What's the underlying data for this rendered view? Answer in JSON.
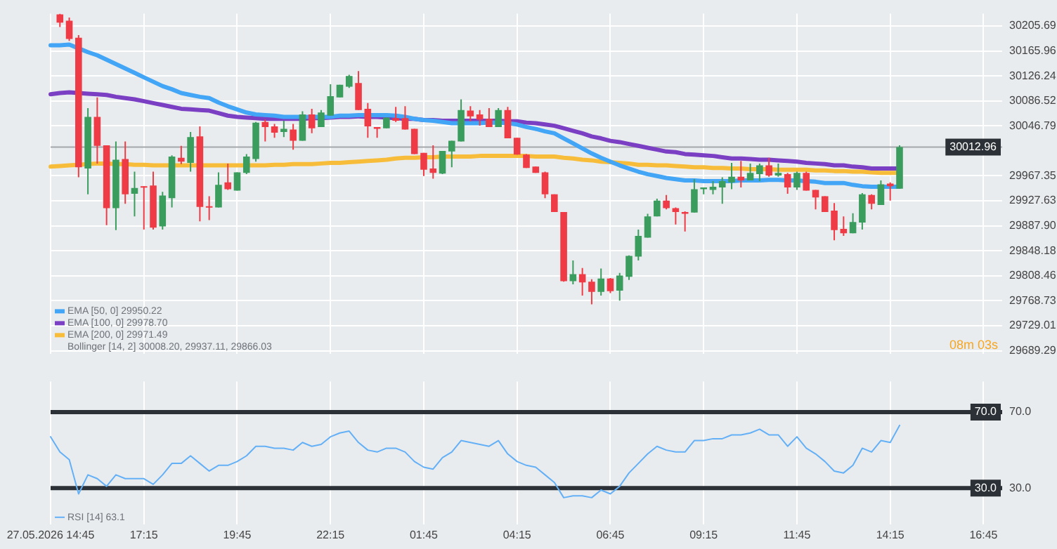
{
  "chart_data": [
    {
      "type": "candlestick",
      "categories": [
        null,
        null,
        null,
        null,
        null,
        null,
        null,
        null,
        null,
        null,
        null,
        null,
        null,
        null,
        null,
        null,
        null,
        null,
        null,
        null,
        null,
        null,
        null,
        null,
        null,
        null,
        null,
        null,
        null,
        null,
        null,
        null,
        null,
        null,
        null,
        null,
        null,
        null,
        null,
        null,
        null,
        null,
        null,
        null,
        null,
        null,
        null,
        null,
        null,
        null,
        null,
        null,
        null,
        null,
        null,
        null,
        null,
        null,
        null,
        null,
        null,
        null,
        null,
        null,
        null,
        null,
        null,
        null,
        null,
        null,
        null,
        null,
        null,
        null,
        null,
        null,
        null,
        null,
        null,
        null,
        null,
        null,
        null,
        null,
        null,
        null,
        null,
        null,
        null,
        null,
        null,
        null,
        null,
        null,
        null,
        null,
        null,
        null,
        null,
        null,
        null,
        null,
        null
      ],
      "ohlc": [
        null,
        [
          30224,
          30225,
          30204,
          30211
        ],
        [
          30214,
          30219,
          30182,
          30185
        ],
        [
          30187,
          30191,
          29965,
          29981
        ],
        [
          29979,
          30075,
          29938,
          30061
        ],
        [
          30061,
          30092,
          29987,
          30015
        ],
        [
          30016,
          30016,
          29889,
          29916
        ],
        [
          29916,
          30022,
          29881,
          29993
        ],
        [
          29994,
          30022,
          29923,
          29938
        ],
        [
          29939,
          29974,
          29903,
          29948
        ],
        [
          29951,
          29951,
          29882,
          29949
        ],
        [
          29952,
          29974,
          29882,
          29885
        ],
        [
          29887,
          29942,
          29882,
          29936
        ],
        [
          29932,
          30000,
          29917,
          29998
        ],
        [
          29996,
          30015,
          29986,
          29990
        ],
        [
          29988,
          30037,
          29974,
          30029
        ],
        [
          30030,
          30046,
          29895,
          29918
        ],
        [
          29919,
          29935,
          29897,
          29917
        ],
        [
          29917,
          29973,
          29917,
          29953
        ],
        [
          29957,
          29987,
          29945,
          29946
        ],
        [
          29944,
          29973,
          29944,
          29973
        ],
        [
          29972,
          30002,
          29970,
          29998
        ],
        [
          29994,
          30053,
          29990,
          30052
        ],
        [
          30053,
          30057,
          30022,
          30045
        ],
        [
          30046,
          30050,
          30028,
          30036
        ],
        [
          30037,
          30055,
          30029,
          30042
        ],
        [
          30041,
          30050,
          30009,
          30023
        ],
        [
          30023,
          30070,
          30023,
          30065
        ],
        [
          30065,
          30074,
          30035,
          30043
        ],
        [
          30045,
          30072,
          30045,
          30068
        ],
        [
          30063,
          30113,
          30063,
          30094
        ],
        [
          30092,
          30112,
          30092,
          30112
        ],
        [
          30109,
          30128,
          30107,
          30126
        ],
        [
          30115,
          30134,
          30072,
          30072
        ],
        [
          30074,
          30083,
          30028,
          30046
        ],
        [
          30045,
          30045,
          30028,
          30042
        ],
        [
          30043,
          30060,
          30043,
          30060
        ],
        [
          30059,
          30077,
          30053,
          30055
        ],
        [
          30059,
          30078,
          30041,
          30041
        ],
        [
          30042,
          30042,
          30002,
          30002
        ],
        [
          30004,
          30004,
          29967,
          29977
        ],
        [
          29979,
          30016,
          29963,
          29972
        ],
        [
          29971,
          30007,
          29970,
          30007
        ],
        [
          30006,
          30023,
          29981,
          30023
        ],
        [
          30022,
          30089,
          30022,
          30072
        ],
        [
          30071,
          30078,
          30054,
          30062
        ],
        [
          30065,
          30072,
          30047,
          30057
        ],
        [
          30058,
          30075,
          30045,
          30045
        ],
        [
          30045,
          30075,
          30045,
          30072
        ],
        [
          30072,
          30077,
          30027,
          30027
        ],
        [
          30028,
          30028,
          30001,
          30001
        ],
        [
          30001,
          30002,
          29980,
          29980
        ],
        [
          29982,
          29982,
          29972,
          29972
        ],
        [
          29973,
          29974,
          29932,
          29938
        ],
        [
          29938,
          29938,
          29910,
          29910
        ],
        [
          29910,
          29910,
          29799,
          29800
        ],
        [
          29800,
          29833,
          29795,
          29811
        ],
        [
          29811,
          29821,
          29777,
          29798
        ],
        [
          29799,
          29803,
          29763,
          29783
        ],
        [
          29783,
          29820,
          29777,
          29804
        ],
        [
          29804,
          29805,
          29781,
          29784
        ],
        [
          29785,
          29813,
          29769,
          29809
        ],
        [
          29807,
          29841,
          29802,
          29840
        ],
        [
          29839,
          29882,
          29833,
          29872
        ],
        [
          29869,
          29907,
          29869,
          29903
        ],
        [
          29903,
          29931,
          29903,
          29928
        ],
        [
          29928,
          29937,
          29914,
          29916
        ],
        [
          29916,
          29917,
          29890,
          29910
        ],
        [
          29910,
          29911,
          29879,
          29907
        ],
        [
          29909,
          29962,
          29909,
          29946
        ],
        [
          29946,
          29949,
          29938,
          29949
        ],
        [
          29945,
          29959,
          29938,
          29950
        ],
        [
          29949,
          29965,
          29923,
          29959
        ],
        [
          29957,
          29988,
          29946,
          29966
        ],
        [
          29966,
          29991,
          29949,
          29960
        ],
        [
          29960,
          29987,
          29960,
          29972
        ],
        [
          29970,
          29987,
          29959,
          29984
        ],
        [
          29984,
          29996,
          29966,
          29968
        ],
        [
          29968,
          29987,
          29966,
          29972
        ],
        [
          29970,
          29972,
          29939,
          29949
        ],
        [
          29949,
          29974,
          29945,
          29972
        ],
        [
          29972,
          29974,
          29944,
          29944
        ],
        [
          29945,
          29945,
          29914,
          29933
        ],
        [
          29935,
          29935,
          29910,
          29910
        ],
        [
          29912,
          29924,
          29865,
          29881
        ],
        [
          29883,
          29903,
          29872,
          29876
        ],
        [
          29876,
          29908,
          29876,
          29894
        ],
        [
          29893,
          29940,
          29882,
          29938
        ],
        [
          29937,
          29938,
          29914,
          29923
        ],
        [
          29921,
          29960,
          29921,
          29954
        ],
        [
          29955,
          29957,
          29928,
          29951
        ],
        [
          29947,
          30016,
          29947,
          30013
        ],
        null,
        null,
        null,
        null,
        null,
        null,
        null,
        null,
        null,
        null,
        null
      ],
      "colors": [
        null,
        "#ef3b45",
        "#ef3b45",
        "#ef3b45",
        "#3a9d5d",
        "#ef3b45",
        "#ef3b45",
        "#3a9d5d",
        "#ef3b45",
        "#3a9d5d",
        "#ef3b45",
        "#ef3b45",
        "#3a9d5d",
        "#3a9d5d",
        "#ef3b45",
        "#3a9d5d",
        "#ef3b45",
        "#ef3b45",
        "#3a9d5d",
        "#ef3b45",
        "#3a9d5d",
        "#3a9d5d",
        "#3a9d5d",
        "#ef3b45",
        "#ef3b45",
        "#3a9d5d",
        "#ef3b45",
        "#3a9d5d",
        "#ef3b45",
        "#3a9d5d",
        "#3a9d5d",
        "#3a9d5d",
        "#3a9d5d",
        "#ef3b45",
        "#ef3b45",
        "#ef3b45",
        "#3a9d5d",
        "#ef3b45",
        "#ef3b45",
        "#ef3b45",
        "#ef3b45",
        "#ef3b45",
        "#3a9d5d",
        "#3a9d5d",
        "#3a9d5d",
        "#ef3b45",
        "#ef3b45",
        "#ef3b45",
        "#3a9d5d",
        "#ef3b45",
        "#ef3b45",
        "#ef3b45",
        "#ef3b45",
        "#ef3b45",
        "#ef3b45",
        "#ef3b45",
        "#3a9d5d",
        "#ef3b45",
        "#ef3b45",
        "#3a9d5d",
        "#ef3b45",
        "#3a9d5d",
        "#3a9d5d",
        "#3a9d5d",
        "#3a9d5d",
        "#3a9d5d",
        "#ef3b45",
        "#ef3b45",
        "#ef3b45",
        "#3a9d5d",
        "#3a9d5d",
        "#3a9d5d",
        "#3a9d5d",
        "#3a9d5d",
        "#ef3b45",
        "#3a9d5d",
        "#3a9d5d",
        "#ef3b45",
        "#3a9d5d",
        "#ef3b45",
        "#3a9d5d",
        "#ef3b45",
        "#ef3b45",
        "#ef3b45",
        "#ef3b45",
        "#ef3b45",
        "#3a9d5d",
        "#3a9d5d",
        "#ef3b45",
        "#3a9d5d",
        "#ef3b45",
        "#3a9d5d",
        null,
        null,
        null,
        null,
        null,
        null,
        null,
        null,
        null,
        null,
        null
      ],
      "series": [
        {
          "name": "EMA [50, 0] 29950.22",
          "type": "line",
          "color": "#42a5f5",
          "values": [
            30175,
            30175,
            30176,
            30170,
            30164,
            30159,
            30152,
            30145,
            30138,
            30131,
            30124,
            30117,
            30110,
            30105,
            30099,
            30096,
            30093,
            30091,
            30084,
            30078,
            30073,
            30068,
            30065,
            30064,
            30063,
            30061,
            30061,
            30061,
            30061,
            30061,
            30061,
            30063,
            30063,
            30064,
            30064,
            30064,
            30064,
            30063,
            30061,
            30058,
            30056,
            30055,
            30053,
            30051,
            30051,
            30051,
            30051,
            30052,
            30052,
            30051,
            30049,
            30045,
            30042,
            30038,
            30035,
            30027,
            30019,
            30011,
            30003,
            29996,
            29990,
            29984,
            29979,
            29974,
            29970,
            29967,
            29964,
            29962,
            29960,
            29960,
            29959,
            29959,
            29959,
            29959,
            29960,
            29960,
            29960,
            29961,
            29961,
            29960,
            29960,
            29959,
            29958,
            29956,
            29956,
            29956,
            29953,
            29951,
            29950,
            29950,
            29950,
            29950,
            null,
            null,
            null,
            null,
            null,
            null,
            null,
            null,
            null,
            null,
            null
          ]
        },
        {
          "name": "EMA [100, 0] 29978.70",
          "type": "line",
          "color": "#7b3fc4",
          "values": [
            30097,
            30099,
            30100,
            30099,
            30098,
            30097,
            30096,
            30093,
            30091,
            30089,
            30086,
            30083,
            30080,
            30077,
            30074,
            30073,
            30072,
            30071,
            30067,
            30063,
            30061,
            30060,
            30059,
            30058,
            30058,
            30058,
            30058,
            30058,
            30059,
            30059,
            30060,
            30061,
            30061,
            30062,
            30061,
            30061,
            30060,
            30059,
            30058,
            30058,
            30056,
            30056,
            30055,
            30055,
            30055,
            30055,
            30055,
            30055,
            30055,
            30054,
            30054,
            30052,
            30051,
            30049,
            30047,
            30043,
            30039,
            30035,
            30030,
            30027,
            30023,
            30021,
            30018,
            30015,
            30012,
            30009,
            30006,
            30005,
            30002,
            30001,
            30000,
            29999,
            29997,
            29995,
            29995,
            29994,
            29993,
            29993,
            29992,
            29991,
            29990,
            29988,
            29987,
            29986,
            29984,
            29984,
            29982,
            29981,
            29979,
            29979,
            29979,
            29979,
            null,
            null,
            null,
            null,
            null,
            null,
            null,
            null,
            null,
            null,
            null
          ]
        },
        {
          "name": "EMA [200, 0] 29971.49",
          "type": "line",
          "color": "#f7bd3a",
          "values": [
            29982,
            29983,
            29984,
            29985,
            29986,
            29987,
            29987,
            29986,
            29986,
            29985,
            29985,
            29984,
            29984,
            29984,
            29984,
            29984,
            29984,
            29984,
            29984,
            29984,
            29984,
            29984,
            29984,
            29984,
            29985,
            29985,
            29986,
            29986,
            29986,
            29987,
            29988,
            29988,
            29989,
            29990,
            29991,
            29992,
            29993,
            29995,
            29996,
            29996,
            29997,
            29997,
            29998,
            29998,
            29998,
            29998,
            29999,
            29999,
            29999,
            29999,
            29999,
            29999,
            29998,
            29998,
            29998,
            29996,
            29995,
            29993,
            29992,
            29990,
            29989,
            29988,
            29987,
            29985,
            29985,
            29984,
            29984,
            29983,
            29982,
            29981,
            29981,
            29980,
            29980,
            29979,
            29979,
            29978,
            29978,
            29978,
            29977,
            29977,
            29977,
            29977,
            29976,
            29976,
            29975,
            29975,
            29974,
            29974,
            29973,
            29972,
            29972,
            29972,
            null,
            null,
            null,
            null,
            null,
            null,
            null,
            null,
            null,
            null,
            null
          ]
        }
      ],
      "ylim": [
        29684,
        30225
      ],
      "yticks": [
        30205.69,
        30165.96,
        30126.24,
        30086.52,
        30046.79,
        29967.35,
        29927.63,
        {
          "value": 29887.9,
          "label": "29887.90"
        },
        29848.18,
        29808.46,
        29768.73,
        29729.01,
        29689.29
      ],
      "ref_lines": [
        {
          "axis": "y",
          "value": 30012.96,
          "label": "30012.96",
          "color": "#a3a7ab"
        }
      ],
      "annotations": [
        "Bollinger [14, 2] 30008.20, 29937.11, 29866.03",
        "08m 03s"
      ],
      "grid": true,
      "legend": "bottom left",
      "tick_labels": "y"
    },
    {
      "type": "line",
      "categories": [
        "27.05.2026 14:45",
        null,
        null,
        null,
        null,
        null,
        null,
        null,
        null,
        null,
        "17:15",
        null,
        null,
        null,
        null,
        null,
        null,
        null,
        null,
        null,
        "19:45",
        null,
        null,
        null,
        null,
        null,
        null,
        null,
        null,
        null,
        "22:15",
        null,
        null,
        null,
        null,
        null,
        null,
        null,
        null,
        null,
        "01:45",
        null,
        null,
        null,
        null,
        null,
        null,
        null,
        null,
        null,
        "04:15",
        null,
        null,
        null,
        null,
        null,
        null,
        null,
        null,
        null,
        "06:45",
        null,
        null,
        null,
        null,
        null,
        null,
        null,
        null,
        null,
        "09:15",
        null,
        null,
        null,
        null,
        null,
        null,
        null,
        null,
        null,
        "11:45",
        null,
        null,
        null,
        null,
        null,
        null,
        null,
        null,
        null,
        "14:15",
        null,
        null,
        null,
        null,
        null,
        null,
        null,
        null,
        null,
        "16:45",
        null,
        null
      ],
      "series": [
        {
          "name": "RSI [14] 63.1",
          "color": "#64b0f6",
          "values": [
            57,
            49,
            45,
            27,
            37,
            35,
            31,
            37,
            35,
            35,
            35,
            32,
            37,
            43,
            43,
            47,
            43,
            39,
            42,
            42,
            44,
            47,
            52,
            52,
            51,
            51,
            50,
            54,
            52,
            53,
            57,
            59,
            60,
            54,
            50,
            49,
            51,
            51,
            49,
            44,
            41,
            40,
            46,
            49,
            55,
            54,
            53,
            52,
            55,
            48,
            44,
            42,
            41,
            37,
            33,
            25,
            26,
            26,
            25,
            29,
            27,
            31,
            38,
            43,
            48,
            52,
            50,
            49,
            49,
            55,
            55,
            56,
            56,
            58,
            58,
            59,
            61,
            58,
            58,
            52,
            57,
            51,
            48,
            44,
            39,
            38,
            42,
            51,
            49,
            55,
            54,
            63,
            null,
            null,
            null,
            null,
            null,
            null,
            null,
            null,
            null,
            null,
            null
          ]
        }
      ],
      "ylim": [
        11,
        86
      ],
      "yticks": [
        {
          "value": 70,
          "label": "70.0"
        },
        {
          "value": 30,
          "label": "30.0"
        }
      ],
      "ref_lines": [
        {
          "axis": "y",
          "value": 70,
          "label": "70.0",
          "color": "#2b3136"
        },
        {
          "axis": "y",
          "value": 30,
          "label": "30.0",
          "color": "#2b3136"
        }
      ],
      "grid": "x",
      "legend": "bottom left"
    }
  ]
}
